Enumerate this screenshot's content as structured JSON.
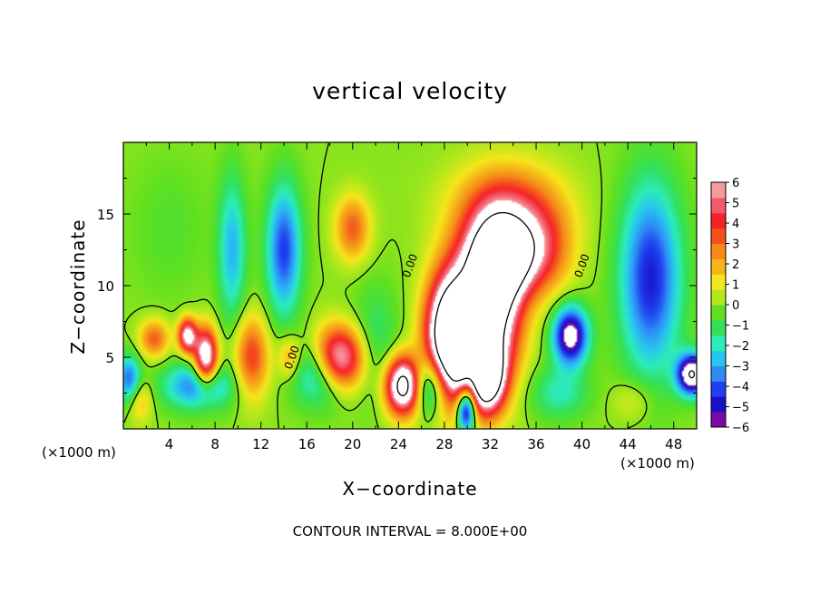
{
  "chart_data": {
    "type": "heatmap",
    "title": "vertical velocity",
    "xlabel": "X−coordinate",
    "ylabel": "Z−coordinate",
    "x_unit_left": "(×1000 m)",
    "x_unit_right": "(×1000 m)",
    "footer": "CONTOUR INTERVAL = 8.000E+00",
    "xlim": [
      0,
      50
    ],
    "ylim": [
      0,
      20
    ],
    "x_ticks": [
      4,
      8,
      12,
      16,
      20,
      24,
      28,
      32,
      36,
      40,
      44,
      48
    ],
    "x_tick_labels": [
      "4",
      "8",
      "12",
      "16",
      "20",
      "24",
      "28",
      "32",
      "36",
      "40",
      "44",
      "48"
    ],
    "y_ticks": [
      5,
      10,
      15
    ],
    "y_tick_labels": [
      "5",
      "10",
      "15"
    ],
    "colorbar": {
      "min": -6,
      "max": 6,
      "labels": [
        "6",
        "5",
        "4",
        "3",
        "2",
        "1",
        "0",
        "−1",
        "−2",
        "−3",
        "−4",
        "−5",
        "−6"
      ],
      "colors": [
        "#7a0aa8",
        "#1a10c8",
        "#1f40f0",
        "#2f8cf5",
        "#27c6f0",
        "#2cecb8",
        "#32e05a",
        "#5ee020",
        "#b4e81a",
        "#f5e61c",
        "#f5b418",
        "#f58a1a",
        "#f5501c",
        "#f5222a",
        "#f55a6a",
        "#f79aa0"
      ]
    },
    "contour_labels": [
      {
        "text": "0.00",
        "x": 15.0,
        "z": 4.9
      },
      {
        "text": "0.00",
        "x": 25.3,
        "z": 11.3
      },
      {
        "text": "0.00",
        "x": 40.3,
        "z": 11.3
      }
    ],
    "features": [
      {
        "x": 24.5,
        "z": 3.0,
        "rx": 1.6,
        "rz": 2.0,
        "v": 10
      },
      {
        "x": 26.5,
        "z": 3.0,
        "rx": 1.6,
        "rz": 2.0,
        "v": -5
      },
      {
        "x": 28.8,
        "z": 6.5,
        "rx": 2.2,
        "rz": 4.2,
        "v": 14
      },
      {
        "x": 29.9,
        "z": 1.4,
        "rx": 0.8,
        "rz": 1.6,
        "v": -8
      },
      {
        "x": 30.6,
        "z": 5.0,
        "rx": 0.9,
        "rz": 2.8,
        "v": -4
      },
      {
        "x": 31.6,
        "z": 3.6,
        "rx": 1.6,
        "rz": 2.4,
        "v": 10
      },
      {
        "x": 32.3,
        "z": 8.5,
        "rx": 2.4,
        "rz": 5.0,
        "v": 9
      },
      {
        "x": 33.0,
        "z": 12.0,
        "rx": 3.2,
        "rz": 2.8,
        "v": 8
      },
      {
        "x": 33.5,
        "z": 15.5,
        "rx": 4.5,
        "rz": 3.0,
        "v": 4
      },
      {
        "x": 36.5,
        "z": 12.5,
        "rx": 2.8,
        "rz": 3.0,
        "v": 3
      },
      {
        "x": 22.0,
        "z": 6.0,
        "rx": 2.0,
        "rz": 4.0,
        "v": -1.5
      },
      {
        "x": 18.7,
        "z": 4.8,
        "rx": 2.2,
        "rz": 2.2,
        "v": 9
      },
      {
        "x": 17.5,
        "z": 4.0,
        "rx": 2.4,
        "rz": 2.2,
        "v": -5
      },
      {
        "x": 20.0,
        "z": 14.0,
        "rx": 1.5,
        "rz": 2.2,
        "v": 3.5
      },
      {
        "x": 14.0,
        "z": 12.5,
        "rx": 1.5,
        "rz": 4.5,
        "v": -4.5
      },
      {
        "x": 9.5,
        "z": 12.5,
        "rx": 1.2,
        "rz": 5.0,
        "v": -3
      },
      {
        "x": 11.2,
        "z": 5.0,
        "rx": 1.5,
        "rz": 2.8,
        "v": 4
      },
      {
        "x": 14.5,
        "z": 5.0,
        "rx": 1.0,
        "rz": 1.5,
        "v": 2.5
      },
      {
        "x": 7.2,
        "z": 5.0,
        "rx": 1.0,
        "rz": 2.0,
        "v": 8
      },
      {
        "x": 5.6,
        "z": 6.5,
        "rx": 0.8,
        "rz": 1.2,
        "v": 7
      },
      {
        "x": 6.5,
        "z": 3.0,
        "rx": 3.0,
        "rz": 1.6,
        "v": -4
      },
      {
        "x": 2.7,
        "z": 6.3,
        "rx": 1.3,
        "rz": 1.3,
        "v": 3.5
      },
      {
        "x": 0.5,
        "z": 3.5,
        "rx": 1.0,
        "rz": 1.6,
        "v": -4
      },
      {
        "x": 1.5,
        "z": 2.0,
        "rx": 1.0,
        "rz": 1.5,
        "v": 2
      },
      {
        "x": 39.0,
        "z": 6.5,
        "rx": 1.5,
        "rz": 2.0,
        "v": -7
      },
      {
        "x": 38.0,
        "z": 2.5,
        "rx": 2.5,
        "rz": 1.8,
        "v": -2
      },
      {
        "x": 46.0,
        "z": 10.5,
        "rx": 2.6,
        "rz": 6.5,
        "v": -5
      },
      {
        "x": 49.6,
        "z": 3.8,
        "rx": 1.3,
        "rz": 1.4,
        "v": -8
      },
      {
        "x": 44.5,
        "z": 2.0,
        "rx": 1.8,
        "rz": 1.5,
        "v": 1.2
      },
      {
        "x": 4.0,
        "z": 14.0,
        "rx": 3.5,
        "rz": 5.0,
        "v": -0.6
      }
    ]
  }
}
